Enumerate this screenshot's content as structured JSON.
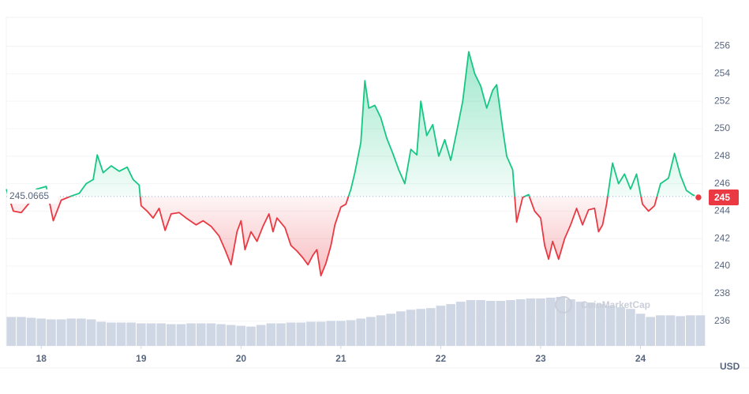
{
  "chart_data": {
    "type": "line",
    "baseline": 245.0665,
    "baseline_label": "245.0665",
    "current_label": "245",
    "watermark": "CoinMarketCap",
    "currency": "USD",
    "up_color": "#16c784",
    "down_color": "#ea3943",
    "x": [
      17.65,
      17.72,
      17.8,
      17.88,
      17.95,
      18.05,
      18.12,
      18.2,
      18.3,
      18.38,
      18.45,
      18.52,
      18.56,
      18.62,
      18.7,
      18.78,
      18.86,
      18.92,
      18.98,
      19.0,
      19.06,
      19.12,
      19.18,
      19.24,
      19.3,
      19.38,
      19.45,
      19.55,
      19.62,
      19.7,
      19.78,
      19.84,
      19.9,
      19.96,
      20.0,
      20.04,
      20.1,
      20.16,
      20.22,
      20.28,
      20.32,
      20.36,
      20.44,
      20.5,
      20.56,
      20.62,
      20.67,
      20.72,
      20.76,
      20.8,
      20.85,
      20.9,
      20.94,
      21.0,
      21.05,
      21.1,
      21.14,
      21.2,
      21.24,
      21.28,
      21.34,
      21.4,
      21.46,
      21.52,
      21.58,
      21.64,
      21.7,
      21.76,
      21.8,
      21.86,
      21.92,
      21.98,
      22.04,
      22.1,
      22.16,
      22.22,
      22.28,
      22.34,
      22.4,
      22.46,
      22.52,
      22.56,
      22.62,
      22.66,
      22.72,
      22.76,
      22.82,
      22.88,
      22.94,
      23.0,
      23.04,
      23.08,
      23.12,
      23.18,
      23.24,
      23.3,
      23.36,
      23.42,
      23.48,
      23.54,
      23.58,
      23.62,
      23.66,
      23.72,
      23.78,
      23.84,
      23.9,
      23.96,
      24.02,
      24.08,
      24.14,
      24.2,
      24.28,
      24.34,
      24.4,
      24.46,
      24.52,
      24.58
    ],
    "series": [
      {
        "values": [
          245.6,
          244.0,
          243.9,
          244.6,
          245.6,
          245.8,
          243.3,
          244.8,
          245.1,
          245.3,
          246.0,
          246.3,
          248.1,
          246.8,
          247.3,
          246.9,
          247.2,
          246.3,
          245.9,
          244.4,
          244.0,
          243.5,
          244.2,
          242.6,
          243.8,
          243.9,
          243.5,
          243.0,
          243.3,
          242.9,
          242.2,
          241.2,
          240.1,
          242.5,
          243.3,
          241.2,
          242.5,
          241.8,
          242.9,
          243.8,
          242.5,
          243.5,
          242.8,
          241.5,
          241.1,
          240.6,
          240.1,
          240.8,
          241.2,
          239.3,
          240.2,
          241.5,
          243.0,
          244.3,
          244.5,
          245.6,
          246.8,
          249.0,
          253.5,
          251.5,
          251.7,
          250.8,
          249.3,
          248.2,
          247.0,
          246.0,
          248.5,
          248.1,
          252.0,
          249.5,
          250.3,
          248.0,
          249.2,
          247.7,
          249.8,
          252.0,
          255.6,
          254.0,
          253.1,
          251.5,
          252.8,
          253.2,
          250.0,
          248.0,
          247.0,
          243.2,
          245.0,
          245.2,
          244.0,
          243.5,
          241.5,
          240.5,
          241.8,
          240.5,
          242.0,
          243.0,
          244.2,
          243.0,
          244.1,
          244.2,
          242.5,
          243.0,
          244.5,
          247.5,
          246.0,
          246.7,
          245.6,
          246.7,
          244.5,
          244.0,
          244.4,
          246.0,
          246.4,
          248.2,
          246.6,
          245.5,
          245.2,
          245.0
        ]
      }
    ],
    "volume": {
      "color": "#cfd6e4",
      "x": [
        17.7,
        17.8,
        17.9,
        18.0,
        18.1,
        18.2,
        18.3,
        18.4,
        18.5,
        18.6,
        18.7,
        18.8,
        18.9,
        19.0,
        19.1,
        19.2,
        19.3,
        19.4,
        19.5,
        19.6,
        19.7,
        19.8,
        19.9,
        20.0,
        20.1,
        20.2,
        20.3,
        20.4,
        20.5,
        20.6,
        20.7,
        20.8,
        20.9,
        21.0,
        21.1,
        21.2,
        21.3,
        21.4,
        21.5,
        21.6,
        21.7,
        21.8,
        21.9,
        22.0,
        22.1,
        22.2,
        22.3,
        22.4,
        22.5,
        22.6,
        22.7,
        22.8,
        22.9,
        23.0,
        23.1,
        23.2,
        23.3,
        23.4,
        23.5,
        23.6,
        23.7,
        23.8,
        23.9,
        24.0,
        24.1,
        24.2,
        24.3,
        24.4,
        24.5,
        24.6
      ],
      "values": [
        36,
        36,
        35,
        34,
        33,
        33,
        34,
        34,
        33,
        30,
        29,
        29,
        29,
        28,
        28,
        28,
        27,
        27,
        28,
        28,
        28,
        27,
        26,
        25,
        24,
        26,
        28,
        28,
        29,
        29,
        30,
        30,
        31,
        31,
        32,
        34,
        36,
        38,
        40,
        43,
        45,
        46,
        47,
        50,
        52,
        55,
        57,
        57,
        56,
        56,
        57,
        58,
        59,
        59,
        60,
        61,
        58,
        55,
        54,
        52,
        50,
        48,
        46,
        40,
        36,
        38,
        38,
        37,
        38,
        38
      ]
    },
    "xlim": [
      17.65,
      24.62
    ],
    "xticks": [
      18,
      19,
      20,
      21,
      22,
      23,
      24
    ],
    "ylim": [
      234.2,
      258.1
    ],
    "yticks": [
      236,
      238,
      240,
      242,
      244,
      246,
      248,
      250,
      252,
      254,
      256
    ],
    "grid": true
  }
}
